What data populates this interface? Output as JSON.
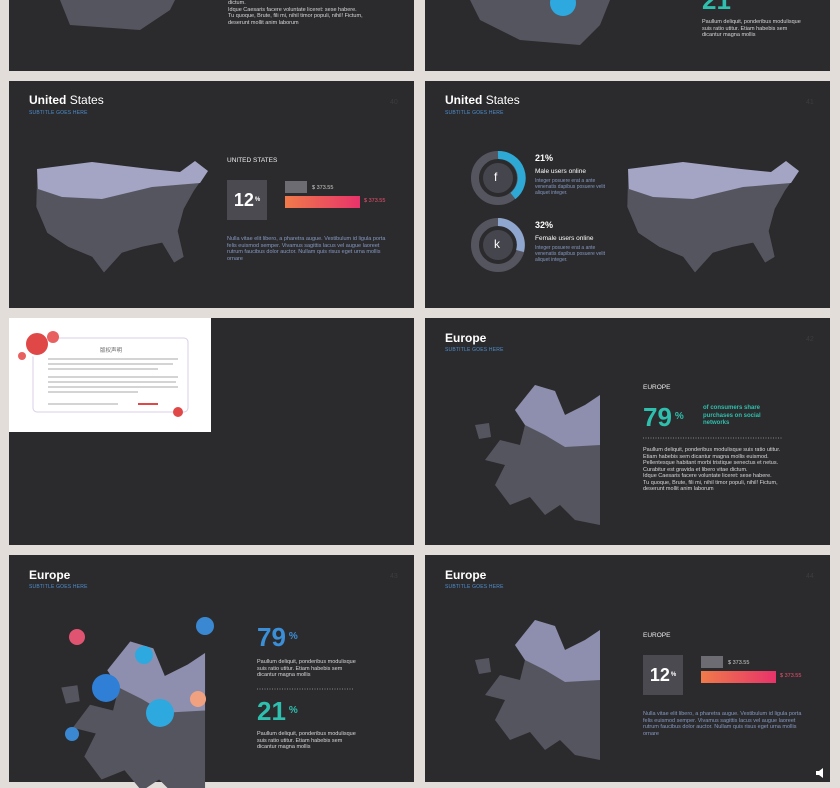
{
  "slides": [
    {
      "body": [
        "dictum.",
        "Idque Caesaris facere voluntate liceret: sese habere.",
        "Tu quoque, Brute, fili mi, nihil timor populi, nihil! Fictum, deserunt mollit anim laborum"
      ]
    },
    {
      "stat": "21",
      "body": "Paullum deliquit, ponderibus modulisque suis ratio utitur. Etiam habebis sem dicantur magna mollis"
    },
    {
      "title_strong": "United",
      "title": "States",
      "subtitle": "SUBTITLE GOES HERE",
      "page": "40",
      "heading": "UNITED STATES",
      "stat": "12",
      "stat_unit": "%",
      "bar_labels": [
        "$ 373.55",
        "$ 373.55"
      ],
      "body": "Nulla vitae elit libero, a pharetra augue. Vestibulum id ligula porta felis euismod semper. Vivamus sagittis lacus vel augue laoreet rutrum faucibus dolor auctor. Nullam quis risus eget urna mollis ornare"
    },
    {
      "title_strong": "United",
      "title": "States",
      "subtitle": "SUBTITLE GOES HERE",
      "page": "41",
      "items": [
        {
          "icon": "f",
          "stat": "21%",
          "label": "Male users online",
          "body": "Integer posuere erat a ante venenatis dapibus posuere velit aliquet integer."
        },
        {
          "icon": "k",
          "stat": "32%",
          "label": "Female users online",
          "body": "Integer posuere erat a ante venenatis dapibus posuere velit aliquet integer."
        }
      ]
    },
    {
      "document": {
        "title": "版权声明"
      }
    },
    {
      "title_strong": "Europe",
      "subtitle": "SUBTITLE GOES HERE",
      "page": "42",
      "heading": "EUROPE",
      "stat": "79",
      "stat_unit": "%",
      "stat_caption": "of consumers share purchases on social networks",
      "body": [
        "Paullum deliquit, ponderibus modulisque suis ratio utitur. Etiam habebis sem dicantur magna mollis euismod. Pellentesque habitant morbi tristique senectus et netus. Curabitur est gravida et libero vitae dictum.",
        "Idque Caesaris facere voluntate liceret: sese habere.",
        "Tu quoque, Brute, fili mi, nihil timor populi, nihil! Fictum, deserunt mollit anim laborum"
      ]
    },
    {
      "title_strong": "Europe",
      "subtitle": "SUBTITLE GOES HERE",
      "page": "43",
      "stats": [
        {
          "stat": "79",
          "unit": "%",
          "body": "Paullum deliquit, ponderibus modulisque suis ratio utitur. Etiam habebis sem dicantur magna mollis"
        },
        {
          "stat": "21",
          "unit": "%",
          "body": "Paullum deliquit, ponderibus modulisque suis ratio utitur. Etiam habebis sem dicantur magna mollis"
        }
      ]
    },
    {
      "title_strong": "Europe",
      "subtitle": "SUBTITLE GOES HERE",
      "page": "44",
      "heading": "EUROPE",
      "stat": "12",
      "stat_unit": "%",
      "bar_labels": [
        "$ 373.55",
        "$ 373.55"
      ],
      "body": "Nulla vitae elit libero, a pharetra augue. Vestibulum id ligula porta felis euismod semper. Vivamus sagittis lacus vel augue laoreet rutrum faucibus dolor auctor. Nullam quis risus eget urna mollis ornare"
    }
  ]
}
